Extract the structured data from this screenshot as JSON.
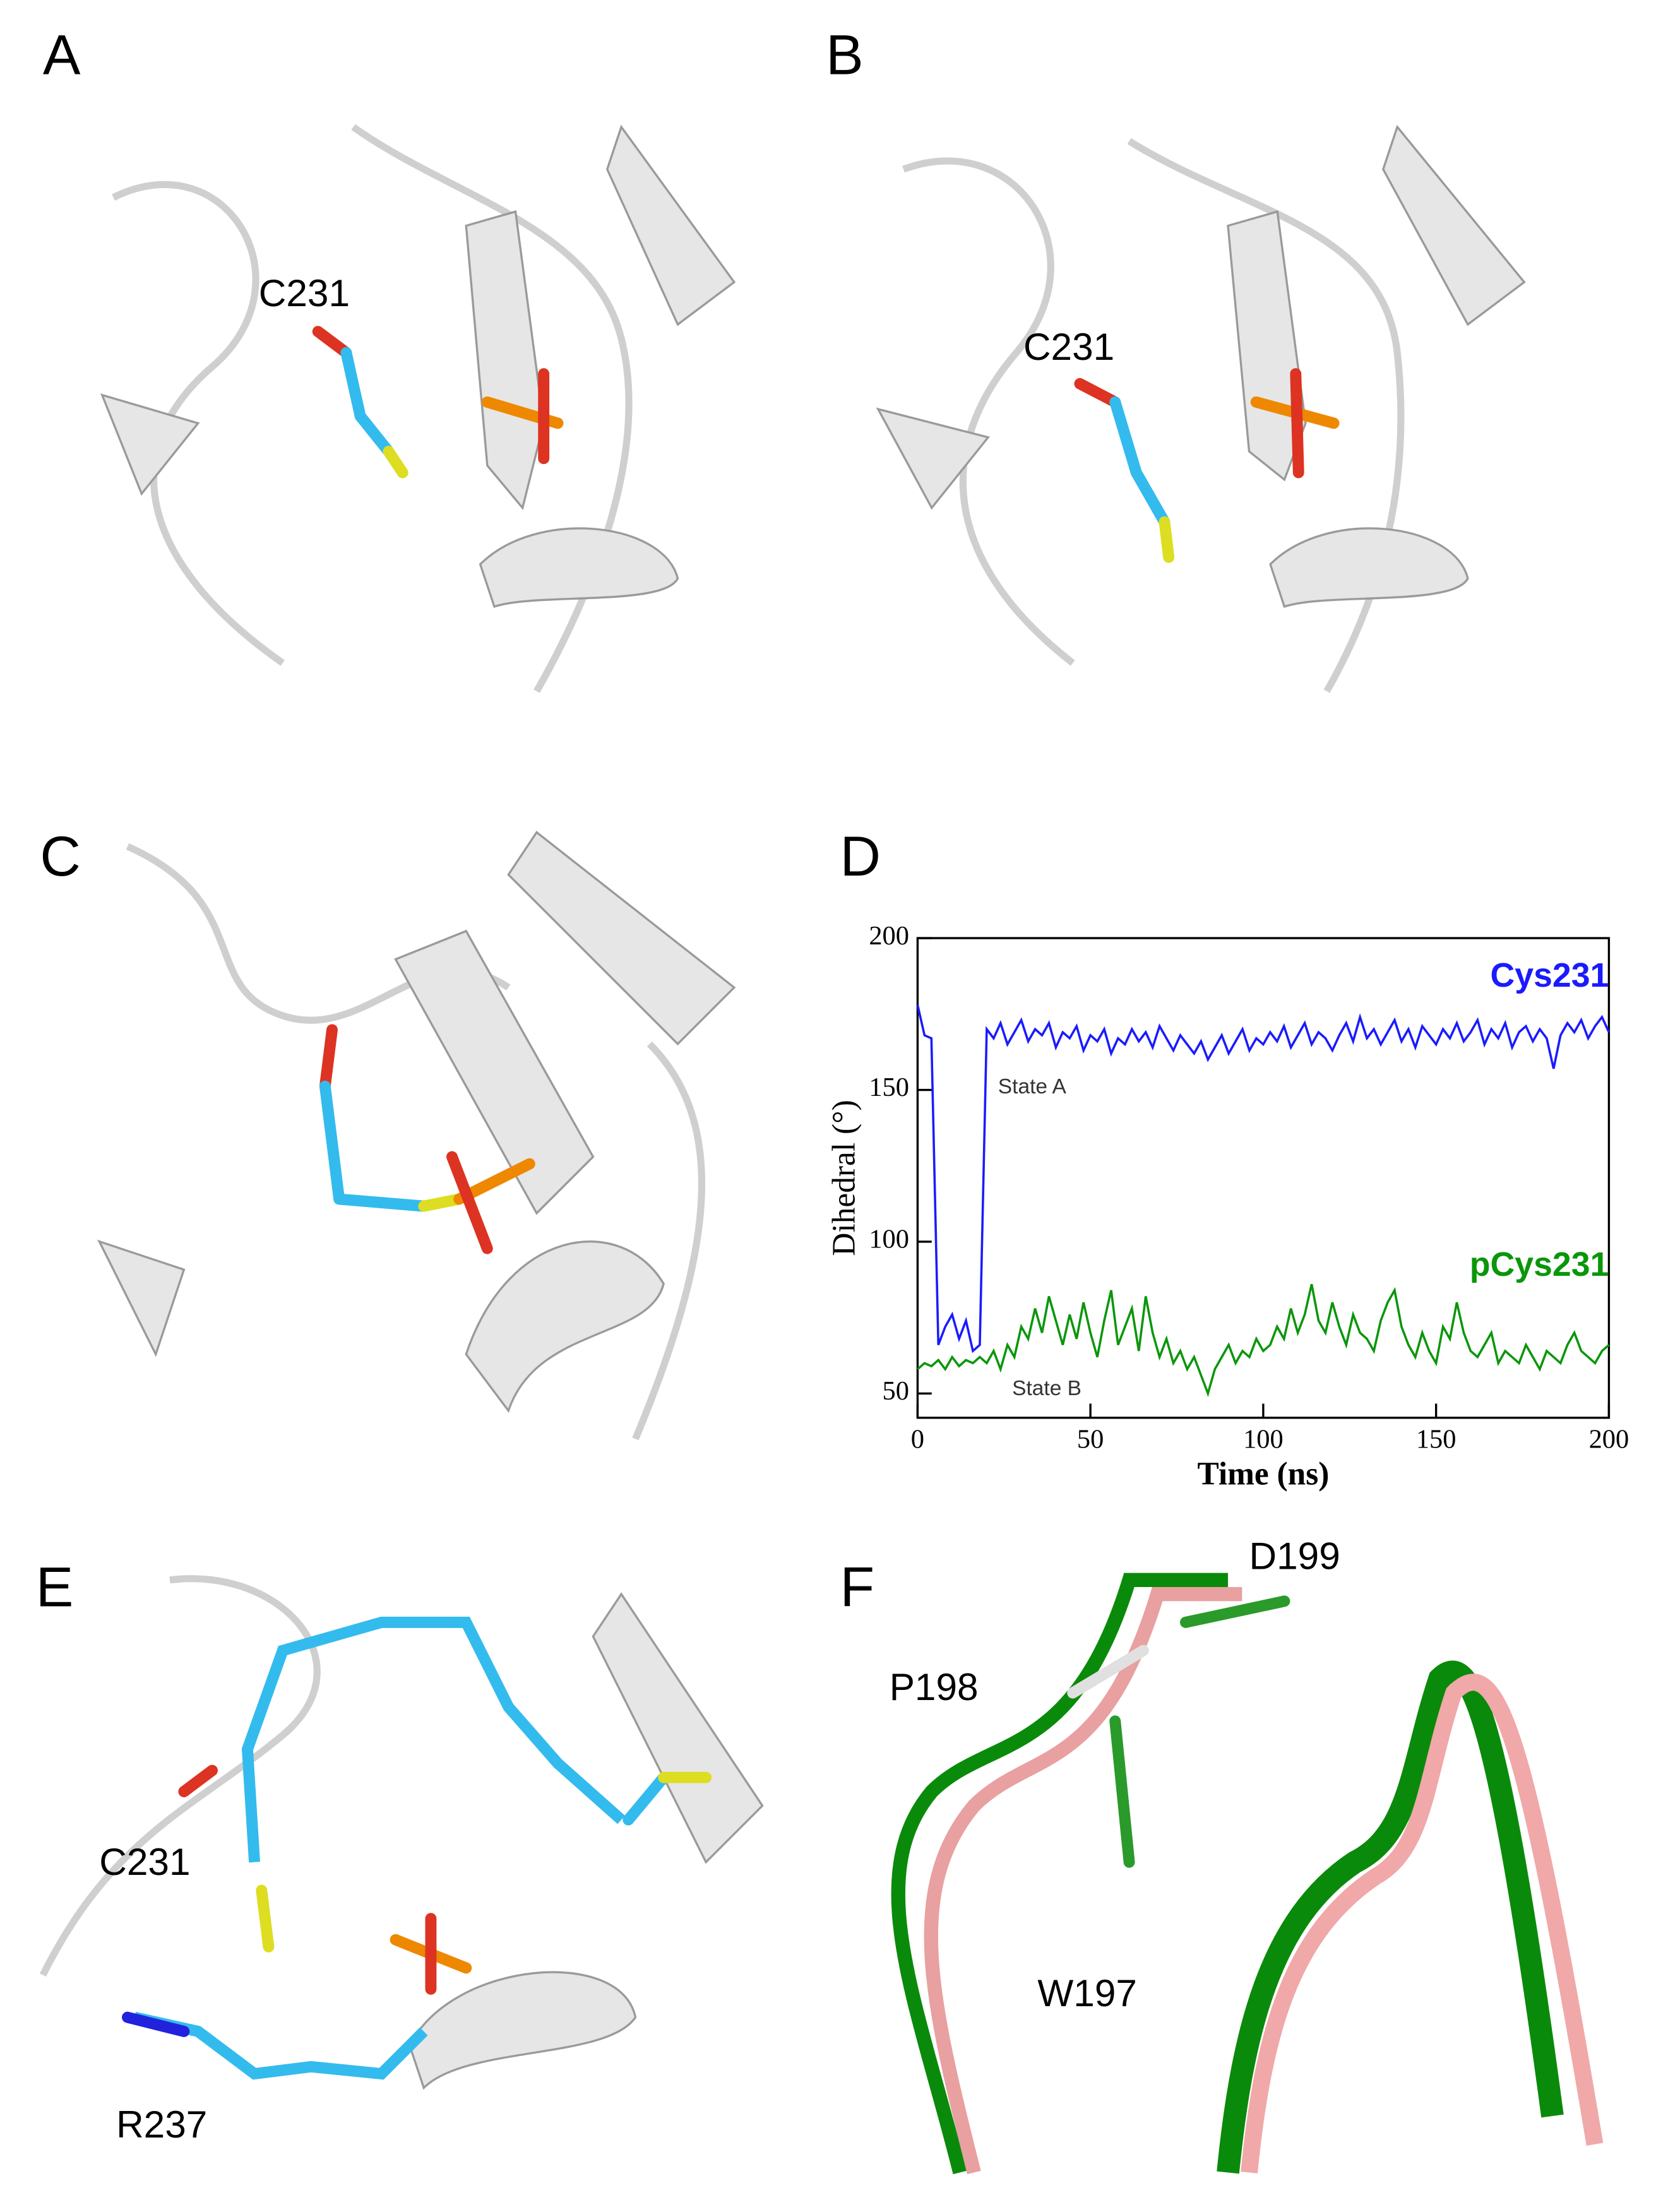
{
  "panels": [
    {
      "label": "A",
      "annotations": [
        "C231"
      ]
    },
    {
      "label": "B",
      "annotations": [
        "C231"
      ]
    },
    {
      "label": "C",
      "annotations": []
    },
    {
      "label": "D",
      "annotations": []
    },
    {
      "label": "E",
      "annotations": [
        "C231",
        "R237"
      ]
    },
    {
      "label": "F",
      "annotations": [
        "D199",
        "P198",
        "W197"
      ]
    }
  ],
  "chart_data": {
    "type": "line",
    "xlabel": "Time (ns)",
    "ylabel": "Dihedral (°)",
    "xlim": [
      0,
      200
    ],
    "ylim": [
      42,
      200
    ],
    "xticks": [
      0,
      50,
      100,
      150,
      200
    ],
    "yticks": [
      50,
      100,
      150,
      200
    ],
    "annotations": [
      "State A",
      "State B"
    ],
    "x": [
      0,
      2,
      4,
      6,
      8,
      10,
      12,
      14,
      16,
      18,
      20,
      22,
      24,
      26,
      28,
      30,
      32,
      34,
      36,
      38,
      40,
      42,
      44,
      46,
      48,
      50,
      52,
      54,
      56,
      58,
      60,
      62,
      64,
      66,
      68,
      70,
      72,
      74,
      76,
      78,
      80,
      82,
      84,
      86,
      88,
      90,
      92,
      94,
      96,
      98,
      100,
      102,
      104,
      106,
      108,
      110,
      112,
      114,
      116,
      118,
      120,
      122,
      124,
      126,
      128,
      130,
      132,
      134,
      136,
      138,
      140,
      142,
      144,
      146,
      148,
      150,
      152,
      154,
      156,
      158,
      160,
      162,
      164,
      166,
      168,
      170,
      172,
      174,
      176,
      178,
      180,
      182,
      184,
      186,
      188,
      190,
      192,
      194,
      196,
      198,
      200
    ],
    "series": [
      {
        "name": "Cys231",
        "color": "#1a1aff",
        "values": [
          178,
          168,
          167,
          66,
          72,
          76,
          68,
          74,
          64,
          66,
          170,
          167,
          172,
          165,
          169,
          173,
          166,
          170,
          168,
          172,
          164,
          169,
          167,
          171,
          163,
          168,
          166,
          170,
          162,
          167,
          165,
          170,
          166,
          169,
          164,
          171,
          167,
          163,
          168,
          165,
          162,
          166,
          160,
          164,
          168,
          162,
          166,
          170,
          163,
          167,
          165,
          169,
          166,
          171,
          164,
          168,
          172,
          165,
          169,
          167,
          163,
          168,
          172,
          166,
          174,
          167,
          170,
          165,
          169,
          173,
          166,
          170,
          164,
          171,
          168,
          165,
          170,
          167,
          172,
          166,
          169,
          173,
          165,
          170,
          167,
          172,
          164,
          169,
          171,
          166,
          170,
          167,
          157,
          168,
          172,
          169,
          173,
          167,
          171,
          174,
          169
        ]
      },
      {
        "name": "pCys231",
        "color": "#0a960a",
        "values": [
          58,
          60,
          59,
          61,
          58,
          62,
          59,
          61,
          60,
          62,
          60,
          64,
          58,
          66,
          62,
          72,
          68,
          78,
          70,
          82,
          74,
          66,
          76,
          68,
          80,
          70,
          62,
          74,
          84,
          66,
          72,
          78,
          64,
          82,
          70,
          62,
          68,
          60,
          64,
          58,
          62,
          56,
          50,
          58,
          62,
          66,
          60,
          64,
          62,
          68,
          64,
          66,
          72,
          68,
          78,
          70,
          76,
          86,
          74,
          70,
          80,
          72,
          66,
          76,
          70,
          68,
          64,
          74,
          80,
          84,
          72,
          66,
          62,
          70,
          64,
          60,
          72,
          68,
          80,
          70,
          64,
          62,
          66,
          70,
          60,
          64,
          62,
          60,
          66,
          62,
          58,
          64,
          62,
          60,
          66,
          70,
          64,
          62,
          60,
          64,
          66
        ]
      }
    ]
  }
}
